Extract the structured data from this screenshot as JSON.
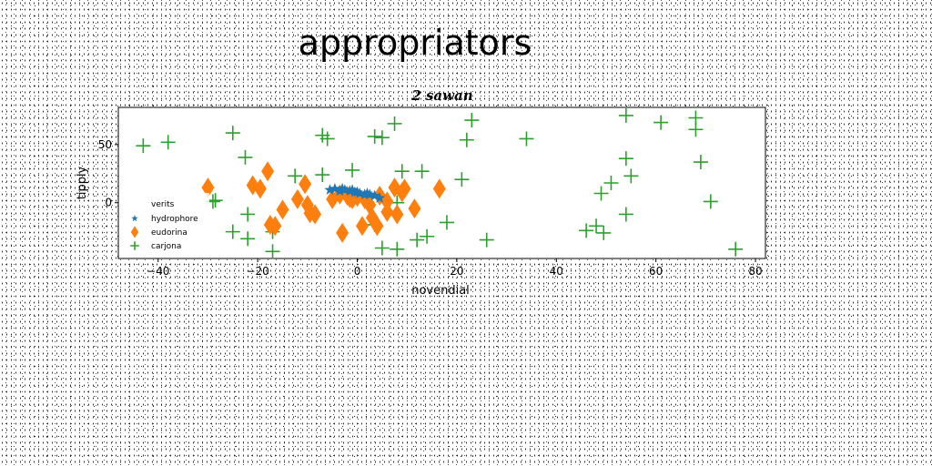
{
  "chart_data": {
    "type": "scatter",
    "page_title": "appropriators",
    "title": "2 sawan",
    "xlabel": "novendial",
    "ylabel": "tipply",
    "xlim": [
      -48,
      82
    ],
    "ylim": [
      -48,
      82
    ],
    "xticks": [
      -40,
      -20,
      0,
      20,
      40,
      60,
      80
    ],
    "yticks": [
      0,
      50
    ],
    "grid": false,
    "legend": {
      "title": "verits",
      "placement": "center-left"
    },
    "series": [
      {
        "name": "hydrophore",
        "marker": "star",
        "color": "#1f77b4",
        "points": [
          [
            -5.5,
            11
          ],
          [
            -4.5,
            12
          ],
          [
            -3.5,
            10
          ],
          [
            -2.5,
            11
          ],
          [
            -1.5,
            10
          ],
          [
            -0.5,
            9
          ],
          [
            0.5,
            8
          ],
          [
            1.5,
            7
          ],
          [
            2.5,
            7
          ],
          [
            3.5,
            6
          ],
          [
            4.5,
            4
          ],
          [
            -3,
            12
          ],
          [
            0,
            9
          ],
          [
            2,
            8
          ],
          [
            -1,
            11
          ]
        ]
      },
      {
        "name": "eudorina",
        "marker": "thin_diamond",
        "color": "#ff7f0e",
        "points": [
          [
            -30,
            13
          ],
          [
            -21,
            15
          ],
          [
            -19.5,
            12
          ],
          [
            -18,
            27
          ],
          [
            -17.5,
            -19
          ],
          [
            -16.5,
            -20
          ],
          [
            -15,
            -6
          ],
          [
            -12,
            3
          ],
          [
            -10.5,
            16
          ],
          [
            -10,
            -2
          ],
          [
            -9.5,
            -9
          ],
          [
            -8.5,
            -10
          ],
          [
            -5,
            3
          ],
          [
            -3.5,
            7
          ],
          [
            -3,
            -26
          ],
          [
            -2,
            6
          ],
          [
            -1,
            3
          ],
          [
            0,
            5
          ],
          [
            1,
            -20
          ],
          [
            1.5,
            3
          ],
          [
            2.5,
            -2
          ],
          [
            3,
            -13
          ],
          [
            4,
            -20
          ],
          [
            4.5,
            6
          ],
          [
            6,
            -8
          ],
          [
            7.5,
            13
          ],
          [
            8,
            -10
          ],
          [
            9,
            9
          ],
          [
            9.5,
            12
          ],
          [
            11.5,
            -5
          ],
          [
            16.5,
            12
          ],
          [
            6,
            1
          ],
          [
            -1.5,
            4
          ]
        ]
      },
      {
        "name": "carjona",
        "marker": "plus",
        "color": "#2ca02c",
        "points": [
          [
            -43,
            49
          ],
          [
            -38,
            52
          ],
          [
            -29,
            1
          ],
          [
            -28.5,
            2
          ],
          [
            -25,
            60
          ],
          [
            -25,
            -25
          ],
          [
            -22.5,
            39
          ],
          [
            -22,
            -10
          ],
          [
            -22,
            -31
          ],
          [
            -17,
            -25
          ],
          [
            -17,
            -42
          ],
          [
            -12.5,
            23
          ],
          [
            -7,
            58
          ],
          [
            -7,
            24
          ],
          [
            -6,
            55
          ],
          [
            -1,
            28
          ],
          [
            3.5,
            57
          ],
          [
            5,
            56
          ],
          [
            3.5,
            -19
          ],
          [
            5,
            -39
          ],
          [
            7.5,
            68
          ],
          [
            8,
            -40
          ],
          [
            9,
            27
          ],
          [
            8,
            0
          ],
          [
            12,
            -32
          ],
          [
            13,
            27
          ],
          [
            14,
            -29
          ],
          [
            18,
            -17
          ],
          [
            21,
            20
          ],
          [
            22,
            54
          ],
          [
            23,
            71
          ],
          [
            26,
            -32
          ],
          [
            34,
            55
          ],
          [
            46,
            -24
          ],
          [
            48,
            -20
          ],
          [
            49,
            8
          ],
          [
            49.5,
            -26
          ],
          [
            51,
            17
          ],
          [
            54,
            75
          ],
          [
            54,
            38
          ],
          [
            54,
            -10
          ],
          [
            55,
            23
          ],
          [
            61,
            69
          ],
          [
            68,
            73
          ],
          [
            68,
            63
          ],
          [
            69,
            35
          ],
          [
            71,
            1
          ],
          [
            76,
            -40
          ]
        ]
      }
    ]
  }
}
